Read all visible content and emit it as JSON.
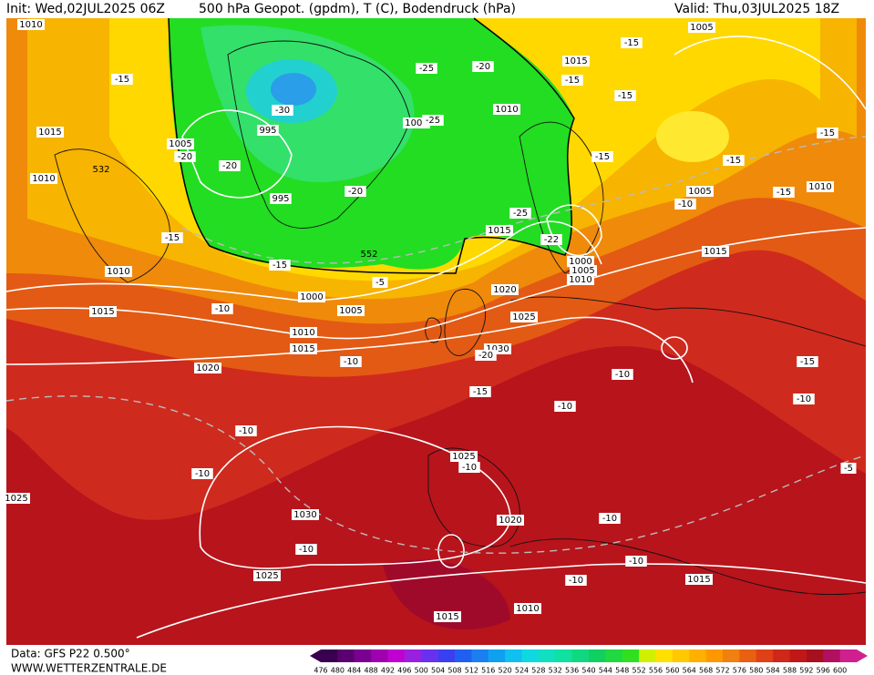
{
  "header": {
    "init": "Init: Wed,02JUL2025 06Z",
    "title": "500 hPa Geopot. (gpdm), T (C), Bodendruck (hPa)",
    "valid": "Valid: Thu,03JUL2025 18Z"
  },
  "footer": {
    "source": "Data: GFS P22 0.500°",
    "site": "WWW.WETTERZENTRALE.DE"
  },
  "colorbar": {
    "labels": [
      476,
      480,
      484,
      488,
      492,
      496,
      500,
      504,
      508,
      512,
      516,
      520,
      524,
      528,
      532,
      536,
      540,
      544,
      548,
      552,
      556,
      560,
      564,
      568,
      572,
      576,
      580,
      584,
      588,
      592,
      596,
      600
    ]
  },
  "isobar_labels": [
    "1010",
    "1005",
    "1015",
    "1010",
    "1000",
    "995",
    "1005",
    "1015",
    "1010",
    "995",
    "1015",
    "1010",
    "1005",
    "1015",
    "1000",
    "1005",
    "1010",
    "1020",
    "1010",
    "1000",
    "1005",
    "1015",
    "1010",
    "1015",
    "1025",
    "1030",
    "1020",
    "1025",
    "1030",
    "1020",
    "1025",
    "1015",
    "1010",
    "1015",
    "1025"
  ],
  "geopotential_labels": [
    "532",
    "552"
  ],
  "temperature_labels": [
    "-15",
    "-15",
    "-15",
    "-15",
    "-25",
    "-20",
    "-30",
    "-25",
    "-20",
    "-20",
    "-20",
    "-15",
    "-15",
    "-15",
    "-15",
    "-10",
    "-25",
    "-22",
    "-15",
    "-15",
    "-5",
    "-10",
    "-10",
    "-20",
    "-15",
    "-10",
    "-10",
    "-15",
    "-10",
    "-10",
    "-10",
    "-10",
    "-5",
    "-10",
    "-10",
    "-10",
    "-10"
  ]
}
